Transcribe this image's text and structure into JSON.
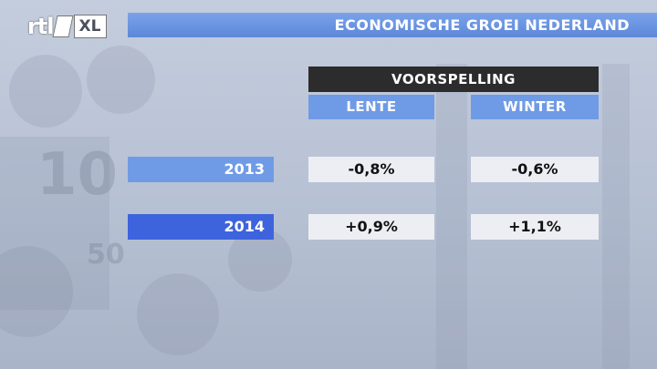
{
  "logo": {
    "brand": "rtl",
    "suffix": "XL"
  },
  "chart_data": {
    "type": "table",
    "title": "ECONOMISCHE GROEI NEDERLAND",
    "group_header": "VOORSPELLING",
    "columns": [
      "LENTE",
      "WINTER"
    ],
    "rows": [
      {
        "year": "2013",
        "values": [
          "-0,8%",
          "-0,6%"
        ]
      },
      {
        "year": "2014",
        "values": [
          "+0,9%",
          "+1,1%"
        ]
      }
    ]
  },
  "colors": {
    "title_bar": "#6a95e0",
    "header_dark": "#2c2c2c",
    "column_header": "#6f9be6",
    "row_2013": "#6f9be6",
    "row_2014": "#3d63dd",
    "cell_bg": "#eceef3"
  }
}
